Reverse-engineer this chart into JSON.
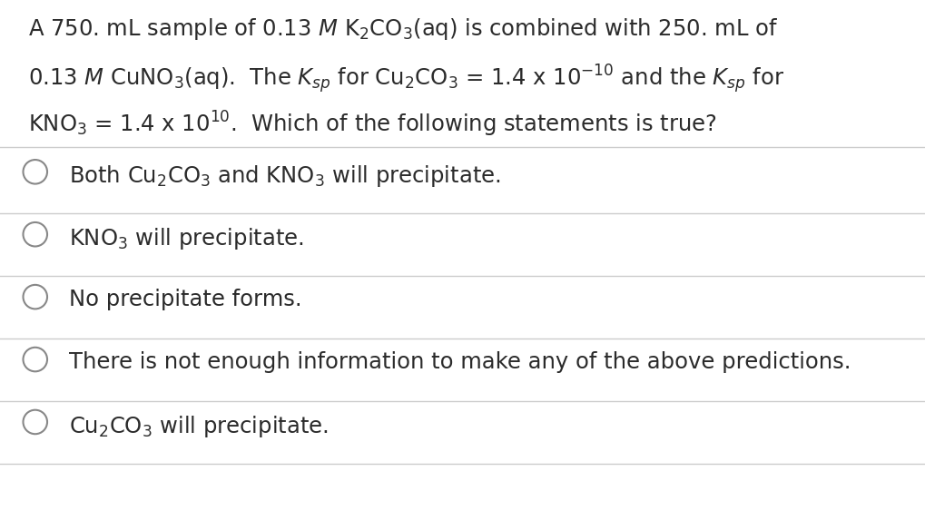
{
  "bg_color": "#ffffff",
  "text_color": "#2b2b2b",
  "line_color": "#cccccc",
  "title_fontsize": 17.5,
  "option_fontsize": 17.5,
  "fig_width": 10.2,
  "fig_height": 5.84
}
